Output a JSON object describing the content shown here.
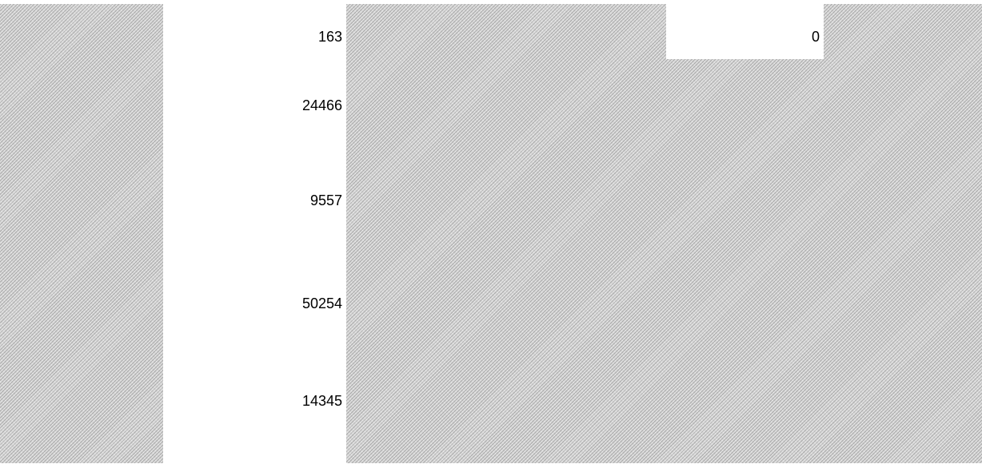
{
  "sheet": {
    "column_values": [
      "163",
      "24466",
      "9557",
      "50254",
      "14345"
    ],
    "top_cell_value": "0"
  },
  "colors": {
    "hatch_base": "#d9d9d9",
    "background": "#ffffff",
    "text": "#000000"
  }
}
